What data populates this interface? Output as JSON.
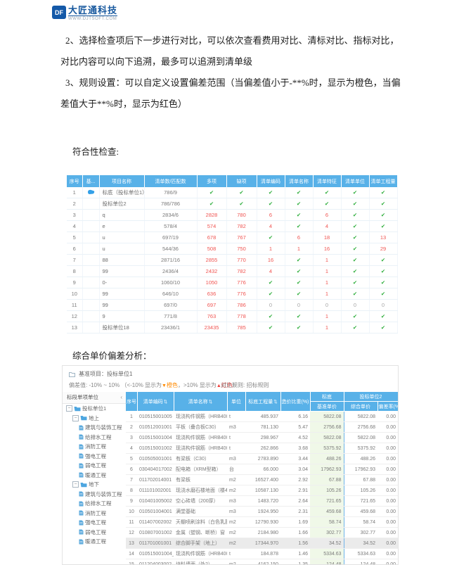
{
  "logo": {
    "name": "大匠通科技",
    "domain": "WWW.DJTSOFT.COM",
    "badge": "DF"
  },
  "paragraphs": {
    "p2_line1": "2、选择检查项后下一步进行对比，可以依次查看费用对比、清标对比、指标对比，",
    "p2_line2": "对比内容可以向下追溯，最多可以追溯到清单级",
    "p3_line1": "3、规则设置：可以自定义设置偏差范围（当偏差值小于-**%时，显示为橙色，当偏",
    "p3_line2": "差值大于**%时，显示为红色）"
  },
  "section1": {
    "title": "符合性检查:",
    "table": {
      "headers": [
        "序号",
        "基...",
        "项目名称",
        "清单数/匹配数",
        "多项",
        "缺项",
        "清单编码",
        "清单名称",
        "清单特征",
        "清单单位",
        "清单工程量"
      ],
      "rows": [
        {
          "no": "1",
          "base": true,
          "name": "标底（投标单位1）",
          "counts": "786/9",
          "cells": [
            "✓",
            "✓",
            "✓",
            "✓",
            "✓",
            "✓",
            "✓"
          ]
        },
        {
          "no": "2",
          "base": false,
          "name": "投标单位2",
          "counts": "786/786",
          "cells": [
            "✓",
            "✓",
            "✓",
            "✓",
            "✓",
            "✓",
            "✓"
          ]
        },
        {
          "no": "3",
          "base": false,
          "name": "q",
          "counts": "2834/6",
          "cells": [
            "2828",
            "780",
            "6",
            "✓",
            "6",
            "✓",
            "✓"
          ]
        },
        {
          "no": "4",
          "base": false,
          "name": "e",
          "counts": "578/4",
          "cells": [
            "574",
            "782",
            "4",
            "✓",
            "4",
            "✓",
            "✓"
          ]
        },
        {
          "no": "5",
          "base": false,
          "name": "u",
          "counts": "697/19",
          "cells": [
            "678",
            "767",
            "✓",
            "6",
            "18",
            "✓",
            "13"
          ]
        },
        {
          "no": "6",
          "base": false,
          "name": "u",
          "counts": "544/36",
          "cells": [
            "508",
            "750",
            "1",
            "1",
            "16",
            "✓",
            "29"
          ]
        },
        {
          "no": "7",
          "base": false,
          "name": "88",
          "counts": "2871/16",
          "cells": [
            "2855",
            "770",
            "16",
            "✓",
            "1",
            "✓",
            "✓"
          ]
        },
        {
          "no": "8",
          "base": false,
          "name": "99",
          "counts": "2436/4",
          "cells": [
            "2432",
            "782",
            "4",
            "✓",
            "1",
            "✓",
            "✓"
          ]
        },
        {
          "no": "9",
          "base": false,
          "name": "0-",
          "counts": "1060/10",
          "cells": [
            "1050",
            "776",
            "✓",
            "✓",
            "1",
            "✓",
            "✓"
          ]
        },
        {
          "no": "10",
          "base": false,
          "name": "99",
          "counts": "646/10",
          "cells": [
            "636",
            "776",
            "✓",
            "✓",
            "1",
            "✓",
            "✓"
          ]
        },
        {
          "no": "11",
          "base": false,
          "name": "99",
          "counts": "697/0",
          "cells": [
            "697",
            "786",
            "0",
            "0",
            "0",
            "0",
            "0"
          ]
        },
        {
          "no": "12",
          "base": false,
          "name": "9",
          "counts": "771/8",
          "cells": [
            "763",
            "778",
            "✓",
            "✓",
            "1",
            "✓",
            "✓"
          ]
        },
        {
          "no": "13",
          "base": false,
          "name": "投标单位18",
          "counts": "23436/1",
          "cells": [
            "23435",
            "785",
            "✓",
            "✓",
            "1",
            "✓",
            "✓"
          ]
        }
      ]
    }
  },
  "section2": {
    "title": "综合单价偏差分析：",
    "base_project_label": "基准项目：投标单位1",
    "deviation_note": {
      "prefix": "偏差值: -10% ~ 10% （<-10% 显示为",
      "marker_down": "▼",
      "orange_label": "橙色",
      "middle": "，>10% 显示为",
      "marker_up": "▲",
      "red_label": "红色",
      "suffix": "）"
    },
    "compare_rule": "对比规则: 招标规则",
    "tree": {
      "header": "标段单项单位",
      "collapse_icon": "‹",
      "nodes": [
        {
          "label": "投标单位1",
          "type": "folder",
          "level": 0
        },
        {
          "label": "地上",
          "type": "folder",
          "level": 1
        },
        {
          "label": "建筑与装饰工程",
          "type": "file",
          "level": 2
        },
        {
          "label": "给排水工程",
          "type": "file",
          "level": 2
        },
        {
          "label": "消防工程",
          "type": "file",
          "level": 2
        },
        {
          "label": "强电工程",
          "type": "file",
          "level": 2
        },
        {
          "label": "弱电工程",
          "type": "file",
          "level": 2
        },
        {
          "label": "暖通工程",
          "type": "file",
          "level": 2
        },
        {
          "label": "地下",
          "type": "folder",
          "level": 1
        },
        {
          "label": "建筑与装饰工程",
          "type": "file",
          "level": 2
        },
        {
          "label": "给排水工程",
          "type": "file",
          "level": 2
        },
        {
          "label": "消防工程",
          "type": "file",
          "level": 2
        },
        {
          "label": "强电工程",
          "type": "file",
          "level": 2
        },
        {
          "label": "弱电工程",
          "type": "file",
          "level": 2
        },
        {
          "label": "暖通工程",
          "type": "file",
          "level": 2
        }
      ]
    },
    "table": {
      "headers": {
        "no": "序号",
        "code": "清单编码",
        "name": "清单名称",
        "unit": "单位",
        "qty": "标底工程量",
        "ratio": "造价比重(%)",
        "group_base": "标底",
        "group_bidder": "投标单位2",
        "base_price": "基准单价",
        "bid_price": "综合单价",
        "dev": "偏差率(%)"
      },
      "sort_icon": "⇅",
      "rows": [
        {
          "no": "1",
          "code": "010515001005",
          "name": "现浇构件钢筋（HRB400，>...",
          "unit": "t",
          "qty": "485.937",
          "ratio": "6.16",
          "base": "5822.08",
          "bid": "5822.08",
          "dev": "0.00",
          "selected": false
        },
        {
          "no": "2",
          "code": "010512001001",
          "name": "平板（叠合板C30）",
          "unit": "m3",
          "qty": "781.130",
          "ratio": "5.47",
          "base": "2756.68",
          "bid": "2756.68",
          "dev": "0.00",
          "selected": false
        },
        {
          "no": "3",
          "code": "010515001004",
          "name": "现浇构件钢筋（HRB400，>...",
          "unit": "t",
          "qty": "298.967",
          "ratio": "4.52",
          "base": "5822.08",
          "bid": "5822.08",
          "dev": "0.00",
          "selected": false
        },
        {
          "no": "4",
          "code": "010515001002",
          "name": "现浇构件钢筋（HRB400，φ...",
          "unit": "t",
          "qty": "262.866",
          "ratio": "3.68",
          "base": "5375.92",
          "bid": "5375.92",
          "dev": "0.00",
          "selected": false
        },
        {
          "no": "5",
          "code": "010505001001",
          "name": "有梁板（C30）",
          "unit": "m3",
          "qty": "2783.890",
          "ratio": "3.44",
          "base": "488.26",
          "bid": "488.26",
          "dev": "0.00",
          "selected": false
        },
        {
          "no": "6",
          "code": "030404017002",
          "name": "配电箱（XRM型箱）",
          "unit": "台",
          "qty": "66.000",
          "ratio": "3.04",
          "base": "17962.93",
          "bid": "17962.93",
          "dev": "0.00",
          "selected": false
        },
        {
          "no": "7",
          "code": "011702014001",
          "name": "有梁板",
          "unit": "m2",
          "qty": "16527.400",
          "ratio": "2.92",
          "base": "67.88",
          "bid": "67.88",
          "dev": "0.00",
          "selected": false
        },
        {
          "no": "8",
          "code": "011101002001",
          "name": "现浇水磨石楼地面（楼4）",
          "unit": "m2",
          "qty": "10587.130",
          "ratio": "2.91",
          "base": "105.26",
          "bid": "105.26",
          "dev": "0.00",
          "selected": false
        },
        {
          "no": "9",
          "code": "010401005002",
          "name": "空心砖墙（200厚）",
          "unit": "m3",
          "qty": "1483.720",
          "ratio": "2.64",
          "base": "721.65",
          "bid": "721.65",
          "dev": "0.00",
          "selected": false
        },
        {
          "no": "10",
          "code": "010501004001",
          "name": "满堂基础",
          "unit": "m3",
          "qty": "1924.950",
          "ratio": "2.31",
          "base": "459.68",
          "bid": "459.68",
          "dev": "0.00",
          "selected": false
        },
        {
          "no": "11",
          "code": "011407002002",
          "name": "天棚喷刷涂料（白色乳胶漆...",
          "unit": "m2",
          "qty": "12790.930",
          "ratio": "1.69",
          "base": "58.74",
          "bid": "58.74",
          "dev": "0.00",
          "selected": false
        },
        {
          "no": "12",
          "code": "010807001002",
          "name": "金属（塑钢、断桥）窗（开...",
          "unit": "m2",
          "qty": "2184.980",
          "ratio": "1.66",
          "base": "302.77",
          "bid": "302.77",
          "dev": "0.00",
          "selected": false
        },
        {
          "no": "13",
          "code": "011701001001",
          "name": "综合脚手架（地上）",
          "unit": "m2",
          "qty": "17344.970",
          "ratio": "1.56",
          "base": "34.52",
          "bid": "34.52",
          "dev": "0.00",
          "selected": true
        },
        {
          "no": "14",
          "code": "010515001004_1",
          "name": "现浇构件钢筋（HRB400，φ...",
          "unit": "t",
          "qty": "184.878",
          "ratio": "1.46",
          "base": "5334.63",
          "bid": "5334.63",
          "dev": "0.00",
          "selected": false
        },
        {
          "no": "15",
          "code": "011204003002",
          "name": "块料墙面（外2）",
          "unit": "m2",
          "qty": "4162.150",
          "ratio": "1.35",
          "base": "124.48",
          "bid": "124.48",
          "dev": "0.00",
          "selected": false
        }
      ]
    }
  },
  "colors": {
    "header_blue": "#58b1e8",
    "check_green": "#2fae3d",
    "alert_red": "#f05552",
    "orange": "#ff8a00",
    "logo_blue": "#17589e",
    "base_col_green": "#f0f8e8",
    "divider_blue": "#6fb3e8",
    "selected_row": "#ebebeb"
  }
}
